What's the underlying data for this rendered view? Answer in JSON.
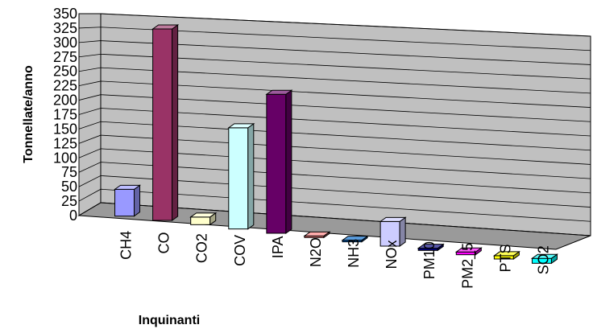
{
  "chart_data": {
    "type": "bar",
    "title": "",
    "xlabel": "Inquinanti",
    "ylabel": "Tonnellate/anno",
    "ylim": [
      0,
      350
    ],
    "yticks": [
      0,
      25,
      50,
      75,
      100,
      125,
      150,
      175,
      200,
      225,
      250,
      275,
      300,
      325,
      350
    ],
    "grid": true,
    "style": "3d-columns",
    "categories": [
      "CH4",
      "CO",
      "CO2",
      "COV",
      "IPA",
      "N2O",
      "NH3",
      "NOx",
      "PM10",
      "PM2_5",
      "PTS",
      "SO2"
    ],
    "values": [
      49,
      350,
      14,
      185,
      254,
      2,
      3,
      45,
      4,
      5,
      6,
      9
    ],
    "colors": {
      "wall": "#c0c0c0",
      "floor": "#9a9a9a",
      "bars": [
        "#9999ff",
        "#993366",
        "#ffffcc",
        "#ccffff",
        "#660066",
        "#ff8080",
        "#0066cc",
        "#ccccff",
        "#000080",
        "#ff00ff",
        "#ffff00",
        "#00ffff"
      ]
    }
  }
}
